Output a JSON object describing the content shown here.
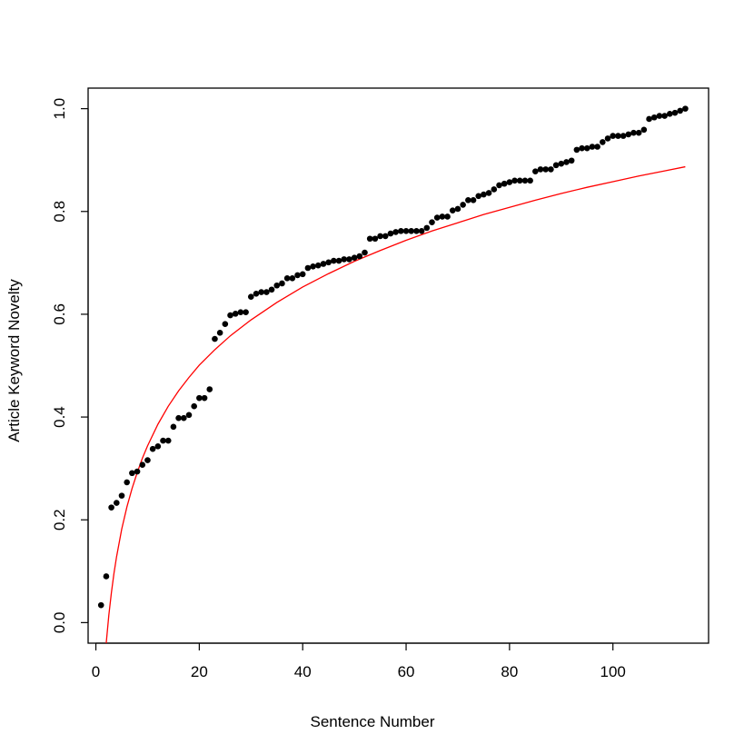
{
  "chart_data": {
    "type": "scatter",
    "title": "",
    "xlabel": "Sentence Number",
    "ylabel": "Article Keyword Novelty",
    "xlim": [
      -1.5,
      118.5
    ],
    "ylim": [
      -0.04,
      1.04
    ],
    "x_ticks": [
      0,
      20,
      40,
      60,
      80,
      100
    ],
    "y_ticks": [
      0.0,
      0.2,
      0.4,
      0.6,
      0.8,
      1.0
    ],
    "x_tick_labels": [
      "0",
      "20",
      "40",
      "60",
      "80",
      "100"
    ],
    "y_tick_labels": [
      "0.0",
      "0.2",
      "0.4",
      "0.6",
      "0.8",
      "1.0"
    ],
    "colors": {
      "points": "#000000",
      "fit_line": "#ff0000"
    },
    "series": [
      {
        "type": "scatter",
        "x": [
          1,
          2,
          3,
          4,
          5,
          6,
          7,
          8,
          9,
          10,
          11,
          12,
          13,
          14,
          15,
          16,
          17,
          18,
          19,
          20,
          21,
          22,
          23,
          24,
          25,
          26,
          27,
          28,
          29,
          30,
          31,
          32,
          33,
          34,
          35,
          36,
          37,
          38,
          39,
          40,
          41,
          42,
          43,
          44,
          45,
          46,
          47,
          48,
          49,
          50,
          51,
          52,
          53,
          54,
          55,
          56,
          57,
          58,
          59,
          60,
          61,
          62,
          63,
          64,
          65,
          66,
          67,
          68,
          69,
          70,
          71,
          72,
          73,
          74,
          75,
          76,
          77,
          78,
          79,
          80,
          81,
          82,
          83,
          84,
          85,
          86,
          87,
          88,
          89,
          90,
          91,
          92,
          93,
          94,
          95,
          96,
          97,
          98,
          99,
          100,
          101,
          102,
          103,
          104,
          105,
          106,
          107,
          108,
          109,
          110,
          111,
          112,
          113,
          114
        ],
        "y": [
          0.034,
          0.09,
          0.224,
          0.233,
          0.247,
          0.273,
          0.291,
          0.294,
          0.307,
          0.316,
          0.338,
          0.343,
          0.354,
          0.354,
          0.381,
          0.398,
          0.398,
          0.404,
          0.421,
          0.437,
          0.437,
          0.454,
          0.552,
          0.564,
          0.581,
          0.598,
          0.601,
          0.604,
          0.604,
          0.634,
          0.64,
          0.643,
          0.643,
          0.648,
          0.656,
          0.66,
          0.67,
          0.67,
          0.676,
          0.678,
          0.69,
          0.693,
          0.695,
          0.698,
          0.701,
          0.704,
          0.704,
          0.707,
          0.707,
          0.71,
          0.713,
          0.72,
          0.747,
          0.747,
          0.752,
          0.752,
          0.757,
          0.76,
          0.762,
          0.762,
          0.762,
          0.762,
          0.762,
          0.768,
          0.779,
          0.788,
          0.79,
          0.79,
          0.802,
          0.805,
          0.813,
          0.822,
          0.822,
          0.83,
          0.833,
          0.836,
          0.843,
          0.851,
          0.854,
          0.857,
          0.86,
          0.86,
          0.86,
          0.86,
          0.878,
          0.882,
          0.882,
          0.882,
          0.89,
          0.893,
          0.896,
          0.899,
          0.92,
          0.923,
          0.923,
          0.926,
          0.926,
          0.935,
          0.942,
          0.947,
          0.947,
          0.947,
          0.95,
          0.953,
          0.953,
          0.959,
          0.98,
          0.983,
          0.986,
          0.986,
          0.99,
          0.992,
          0.996,
          1.0
        ]
      },
      {
        "type": "line",
        "x": [
          2,
          2.5,
          3,
          3.5,
          4,
          5,
          6,
          7,
          8,
          9,
          10,
          12,
          14,
          16,
          18,
          20,
          23,
          26,
          30,
          35,
          40,
          45,
          50,
          55,
          60,
          65,
          70,
          75,
          80,
          85,
          90,
          95,
          100,
          105,
          110,
          114
        ],
        "y": [
          -0.04,
          0.014,
          0.058,
          0.096,
          0.128,
          0.182,
          0.225,
          0.261,
          0.292,
          0.32,
          0.344,
          0.386,
          0.421,
          0.451,
          0.477,
          0.501,
          0.531,
          0.558,
          0.589,
          0.623,
          0.653,
          0.679,
          0.703,
          0.724,
          0.744,
          0.762,
          0.778,
          0.794,
          0.808,
          0.822,
          0.835,
          0.847,
          0.858,
          0.869,
          0.879,
          0.887
        ]
      }
    ]
  }
}
